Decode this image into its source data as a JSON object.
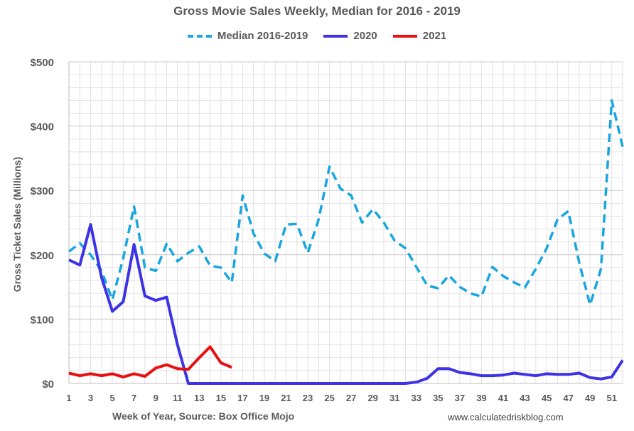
{
  "chart_data": {
    "type": "line",
    "title": "Gross Movie Sales Weekly, Median for 2016 - 2019",
    "xlabel": "Week of Year, Source: Box Office Mojo",
    "ylabel": "Gross Ticket Sales (Millions)",
    "source_note": "www.calculatedriskblog.com",
    "x_ticks": [
      "1",
      "3",
      "5",
      "7",
      "9",
      "11",
      "13",
      "15",
      "17",
      "19",
      "21",
      "23",
      "25",
      "27",
      "29",
      "31",
      "33",
      "35",
      "37",
      "39",
      "41",
      "43",
      "45",
      "47",
      "49",
      "51"
    ],
    "y_ticks": [
      "$0",
      "$100",
      "$200",
      "$300",
      "$400",
      "$500"
    ],
    "xlim": [
      1,
      52
    ],
    "ylim": [
      0,
      500
    ],
    "grid": true,
    "legend_position": "top-center",
    "series": [
      {
        "name": "Median 2016-2019",
        "color": "#19a6e0",
        "style": "dashed",
        "x": [
          1,
          2,
          3,
          4,
          5,
          6,
          7,
          8,
          9,
          10,
          11,
          12,
          13,
          14,
          15,
          16,
          17,
          18,
          19,
          20,
          21,
          22,
          23,
          24,
          25,
          26,
          27,
          28,
          29,
          30,
          31,
          32,
          33,
          34,
          35,
          36,
          37,
          38,
          39,
          40,
          41,
          42,
          43,
          44,
          45,
          46,
          47,
          48,
          49,
          50,
          51,
          52
        ],
        "values": [
          205,
          218,
          200,
          175,
          130,
          195,
          275,
          180,
          175,
          217,
          190,
          203,
          213,
          183,
          180,
          157,
          292,
          233,
          202,
          190,
          247,
          248,
          203,
          255,
          337,
          303,
          292,
          250,
          271,
          250,
          222,
          210,
          181,
          152,
          148,
          168,
          150,
          140,
          135,
          181,
          167,
          157,
          149,
          178,
          210,
          255,
          268,
          188,
          122,
          178,
          440,
          368
        ]
      },
      {
        "name": "2020",
        "color": "#3d33e6",
        "style": "solid",
        "x": [
          1,
          2,
          3,
          4,
          5,
          6,
          7,
          8,
          9,
          10,
          11,
          12,
          13,
          14,
          15,
          16,
          17,
          18,
          19,
          20,
          21,
          22,
          23,
          24,
          25,
          26,
          27,
          28,
          29,
          30,
          31,
          32,
          33,
          34,
          35,
          36,
          37,
          38,
          39,
          40,
          41,
          42,
          43,
          44,
          45,
          46,
          47,
          48,
          49,
          50,
          51,
          52
        ],
        "values": [
          192,
          184,
          247,
          165,
          112,
          127,
          216,
          136,
          129,
          134,
          60,
          0,
          0,
          0,
          0,
          0,
          0,
          0,
          0,
          0,
          0,
          0,
          0,
          0,
          0,
          0,
          0,
          0,
          0,
          0,
          0,
          0,
          2,
          8,
          23,
          23,
          17,
          15,
          12,
          12,
          13,
          16,
          14,
          12,
          15,
          14,
          14,
          16,
          9,
          7,
          10,
          36
        ]
      },
      {
        "name": "2021",
        "color": "#e81010",
        "style": "solid",
        "x": [
          1,
          2,
          3,
          4,
          5,
          6,
          7,
          8,
          9,
          10,
          11,
          12,
          13,
          14,
          15,
          16
        ],
        "values": [
          16,
          12,
          15,
          12,
          15,
          10,
          15,
          11,
          24,
          29,
          23,
          22,
          40,
          57,
          32,
          25
        ]
      }
    ]
  }
}
